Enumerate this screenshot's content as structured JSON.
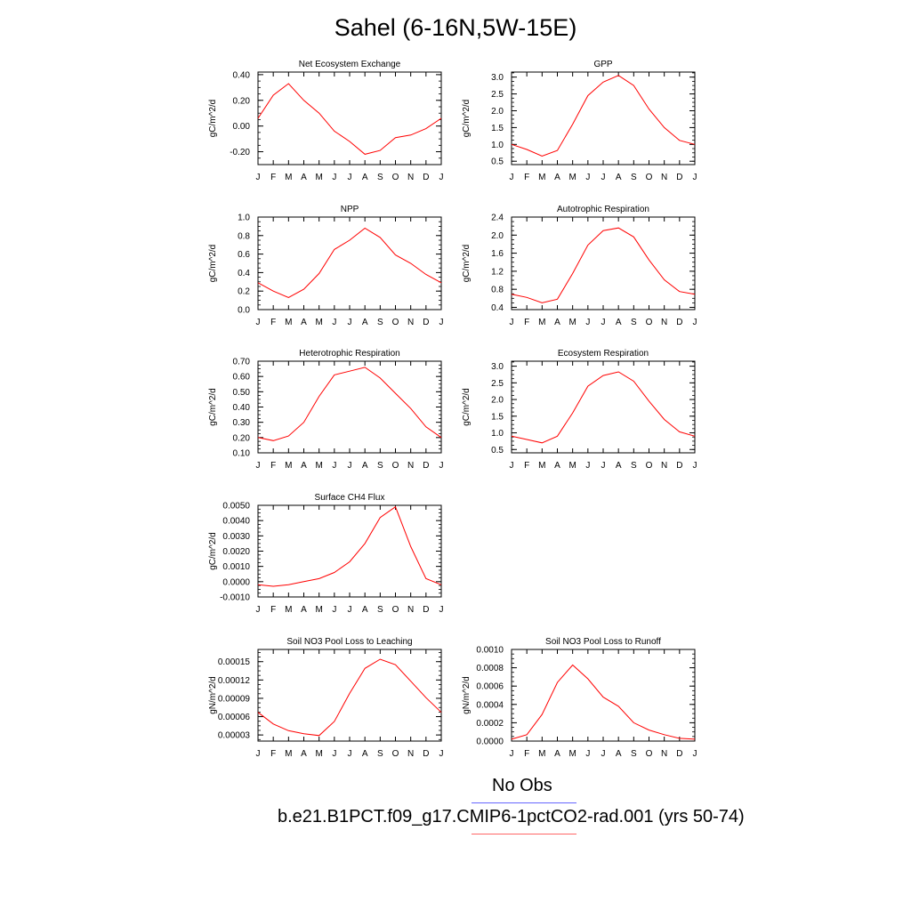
{
  "title": "Sahel (6-16N,5W-15E)",
  "legend": [
    {
      "label": "No Obs",
      "color": "#6666ff"
    },
    {
      "label": "b.e21.B1PCT.f09_g17.CMIP6-1pctCO2-rad.001 (yrs 50-74)",
      "color": "#ff0000"
    }
  ],
  "line_color": "#ff0000",
  "chart_data": [
    {
      "type": "line",
      "title": "Net Ecosystem Exchange",
      "ylabel": "gC/m^2/d",
      "categories": [
        "J",
        "F",
        "M",
        "A",
        "M",
        "J",
        "J",
        "A",
        "S",
        "O",
        "N",
        "D",
        "J"
      ],
      "ylim": [
        -0.3,
        0.42
      ],
      "yticks": [
        -0.2,
        0.0,
        0.2,
        0.4
      ],
      "ytick_labels": [
        "-0.20",
        "0.00",
        "0.20",
        "0.40"
      ],
      "values": [
        0.06,
        0.24,
        0.33,
        0.2,
        0.1,
        -0.04,
        -0.12,
        -0.22,
        -0.19,
        -0.09,
        -0.07,
        -0.02,
        0.06
      ]
    },
    {
      "type": "line",
      "title": "GPP",
      "ylabel": "gC/m^2/d",
      "categories": [
        "J",
        "F",
        "M",
        "A",
        "M",
        "J",
        "J",
        "A",
        "S",
        "O",
        "N",
        "D",
        "J"
      ],
      "ylim": [
        0.4,
        3.15
      ],
      "yticks": [
        0.5,
        1.0,
        1.5,
        2.0,
        2.5,
        3.0
      ],
      "ytick_labels": [
        "0.5",
        "1.0",
        "1.5",
        "2.0",
        "2.5",
        "3.0"
      ],
      "values": [
        1.0,
        0.85,
        0.65,
        0.82,
        1.6,
        2.45,
        2.85,
        3.05,
        2.75,
        2.05,
        1.5,
        1.12,
        1.0
      ]
    },
    {
      "type": "line",
      "title": "NPP",
      "ylabel": "gC/m^2/d",
      "categories": [
        "J",
        "F",
        "M",
        "A",
        "M",
        "J",
        "J",
        "A",
        "S",
        "O",
        "N",
        "D",
        "J"
      ],
      "ylim": [
        0.0,
        1.0
      ],
      "yticks": [
        0.0,
        0.2,
        0.4,
        0.6,
        0.8,
        1.0
      ],
      "ytick_labels": [
        "0.0",
        "0.2",
        "0.4",
        "0.6",
        "0.8",
        "1.0"
      ],
      "values": [
        0.29,
        0.2,
        0.13,
        0.22,
        0.39,
        0.65,
        0.75,
        0.88,
        0.78,
        0.59,
        0.5,
        0.38,
        0.29
      ]
    },
    {
      "type": "line",
      "title": "Autotrophic Respiration",
      "ylabel": "gC/m^2/d",
      "categories": [
        "J",
        "F",
        "M",
        "A",
        "M",
        "J",
        "J",
        "A",
        "S",
        "O",
        "N",
        "D",
        "J"
      ],
      "ylim": [
        0.35,
        2.4
      ],
      "yticks": [
        0.4,
        0.8,
        1.2,
        1.6,
        2.0,
        2.4
      ],
      "ytick_labels": [
        "0.4",
        "0.8",
        "1.2",
        "1.6",
        "2.0",
        "2.4"
      ],
      "values": [
        0.69,
        0.62,
        0.5,
        0.58,
        1.15,
        1.78,
        2.1,
        2.16,
        1.96,
        1.45,
        1.01,
        0.75,
        0.69
      ]
    },
    {
      "type": "line",
      "title": "Heterotrophic Respiration",
      "ylabel": "gC/m^2/d",
      "categories": [
        "J",
        "F",
        "M",
        "A",
        "M",
        "J",
        "J",
        "A",
        "S",
        "O",
        "N",
        "D",
        "J"
      ],
      "ylim": [
        0.1,
        0.7
      ],
      "yticks": [
        0.1,
        0.2,
        0.3,
        0.4,
        0.5,
        0.6,
        0.7
      ],
      "ytick_labels": [
        "0.10",
        "0.20",
        "0.30",
        "0.40",
        "0.50",
        "0.60",
        "0.70"
      ],
      "values": [
        0.2,
        0.18,
        0.21,
        0.3,
        0.47,
        0.61,
        0.635,
        0.66,
        0.59,
        0.49,
        0.39,
        0.27,
        0.2
      ]
    },
    {
      "type": "line",
      "title": "Ecosystem Respiration",
      "ylabel": "gC/m^2/d",
      "categories": [
        "J",
        "F",
        "M",
        "A",
        "M",
        "J",
        "J",
        "A",
        "S",
        "O",
        "N",
        "D",
        "J"
      ],
      "ylim": [
        0.4,
        3.15
      ],
      "yticks": [
        0.5,
        1.0,
        1.5,
        2.0,
        2.5,
        3.0
      ],
      "ytick_labels": [
        "0.5",
        "1.0",
        "1.5",
        "2.0",
        "2.5",
        "3.0"
      ],
      "values": [
        0.9,
        0.8,
        0.7,
        0.9,
        1.6,
        2.4,
        2.72,
        2.83,
        2.55,
        1.95,
        1.4,
        1.03,
        0.9
      ]
    },
    {
      "type": "line",
      "title": "Surface CH4 Flux",
      "ylabel": "gC/m^2/d",
      "categories": [
        "J",
        "F",
        "M",
        "A",
        "M",
        "J",
        "J",
        "A",
        "S",
        "O",
        "N",
        "D",
        "J"
      ],
      "ylim": [
        -0.001,
        0.005
      ],
      "yticks": [
        -0.001,
        0.0,
        0.001,
        0.002,
        0.003,
        0.004,
        0.005
      ],
      "ytick_labels": [
        "-0.0010",
        "0.0000",
        "0.0010",
        "0.0020",
        "0.0030",
        "0.0040",
        "0.0050"
      ],
      "values": [
        -0.0002,
        -0.0003,
        -0.0002,
        0.0,
        0.0002,
        0.0006,
        0.0013,
        0.0025,
        0.0042,
        0.0049,
        0.0023,
        0.0002,
        -0.0002
      ]
    },
    {
      "type": "line",
      "title": "Soil NO3 Pool Loss to Leaching",
      "ylabel": "gN/m^2/d",
      "categories": [
        "J",
        "F",
        "M",
        "A",
        "M",
        "J",
        "J",
        "A",
        "S",
        "O",
        "N",
        "D",
        "J"
      ],
      "ylim": [
        2e-05,
        0.00017
      ],
      "yticks": [
        3e-05,
        6e-05,
        9e-05,
        0.00012,
        0.00015
      ],
      "ytick_labels": [
        "0.00003",
        "0.00006",
        "0.00009",
        "0.00012",
        "0.00015"
      ],
      "values": [
        6.7e-05,
        4.8e-05,
        3.7e-05,
        3.2e-05,
        2.9e-05,
        5.2e-05,
        9.8e-05,
        0.000139,
        0.000154,
        0.000145,
        0.000118,
        9.1e-05,
        6.7e-05
      ]
    },
    {
      "type": "line",
      "title": "Soil NO3 Pool Loss to Runoff",
      "ylabel": "gN/m^2/d",
      "categories": [
        "J",
        "F",
        "M",
        "A",
        "M",
        "J",
        "J",
        "A",
        "S",
        "O",
        "N",
        "D",
        "J"
      ],
      "ylim": [
        0.0,
        0.001
      ],
      "yticks": [
        0.0,
        0.0002,
        0.0004,
        0.0006,
        0.0008,
        0.001
      ],
      "ytick_labels": [
        "0.0000",
        "0.0002",
        "0.0004",
        "0.0006",
        "0.0008",
        "0.0010"
      ],
      "values": [
        2e-05,
        7e-05,
        0.00029,
        0.00064,
        0.00083,
        0.00068,
        0.00048,
        0.00038,
        0.0002,
        0.00012,
        7e-05,
        3e-05,
        2e-05
      ]
    }
  ]
}
